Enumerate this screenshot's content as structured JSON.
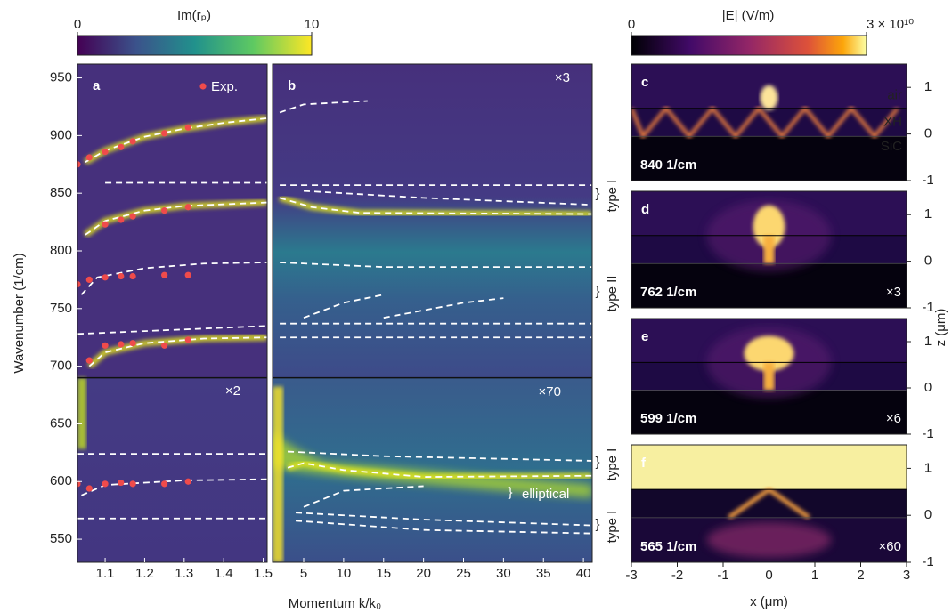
{
  "colorbars": [
    {
      "label": "Im(rₚ)",
      "lim": [
        0,
        10
      ],
      "ticks": [
        0,
        10
      ]
    },
    {
      "label": "|E| (V/m)",
      "lim": [
        0,
        30000000000
      ],
      "ticks": [
        0,
        {
          "value": 30000000000,
          "label": "3 × 10¹⁰"
        }
      ]
    }
  ],
  "chart_data": [
    {
      "type": "line",
      "label": "a",
      "xlabel": "Momentum k/k₀",
      "ylabel": "Wavenumber (1/cm)",
      "xlim": [
        1.03,
        1.51
      ],
      "xticks": [
        1.1,
        1.2,
        1.3,
        1.4,
        1.5
      ],
      "ylim": [
        530,
        962
      ],
      "yticks": [
        550,
        600,
        650,
        700,
        750,
        800,
        850,
        900,
        950
      ],
      "annotations": [
        "×2"
      ],
      "series": [
        {
          "color": "#ffffff",
          "style": "dashed",
          "glow": true,
          "x": [
            1.05,
            1.1,
            1.2,
            1.3,
            1.4,
            1.51
          ],
          "values": [
            877,
            887,
            899,
            906,
            911,
            915
          ]
        },
        {
          "color": "#ffffff",
          "style": "dashed",
          "x": [
            1.1,
            1.51
          ],
          "values": [
            859,
            859
          ]
        },
        {
          "color": "#ffffff",
          "style": "dashed",
          "glow": true,
          "x": [
            1.05,
            1.1,
            1.2,
            1.3,
            1.51
          ],
          "values": [
            814,
            826,
            835,
            839,
            842
          ]
        },
        {
          "color": "#ffffff",
          "style": "dashed",
          "x": [
            1.04,
            1.08,
            1.2,
            1.35,
            1.51
          ],
          "values": [
            762,
            777,
            785,
            789,
            790
          ]
        },
        {
          "color": "#ffffff",
          "style": "dashed",
          "x": [
            1.03,
            1.51
          ],
          "values": [
            728,
            735
          ]
        },
        {
          "color": "#ffffff",
          "style": "dashed",
          "glow": true,
          "x": [
            1.06,
            1.1,
            1.2,
            1.35,
            1.51
          ],
          "values": [
            700,
            712,
            720,
            724,
            725
          ]
        },
        {
          "color": "#ffffff",
          "style": "dashed",
          "x": [
            1.03,
            1.51
          ],
          "values": [
            624,
            624
          ]
        },
        {
          "color": "#ffffff",
          "style": "dashed",
          "x": [
            1.04,
            1.1,
            1.3,
            1.51
          ],
          "values": [
            588,
            597,
            601,
            602
          ]
        },
        {
          "color": "#ffffff",
          "style": "dashed",
          "x": [
            1.03,
            1.51
          ],
          "values": [
            568,
            568
          ]
        },
        {
          "name": "Exp.",
          "color": "#ef4b4b",
          "marker": "dot",
          "x": [
            1.03,
            1.06,
            1.1,
            1.14,
            1.17,
            1.25,
            1.31,
            1.1,
            1.14,
            1.17,
            1.25,
            1.31,
            1.03,
            1.06,
            1.1,
            1.14,
            1.17,
            1.25,
            1.31,
            1.06,
            1.1,
            1.14,
            1.17,
            1.25,
            1.31,
            1.03,
            1.06,
            1.1,
            1.14,
            1.17,
            1.25,
            1.31
          ],
          "values": [
            875,
            881,
            886,
            890,
            895,
            902,
            907,
            823,
            827,
            830,
            835,
            838,
            771,
            775,
            777,
            778,
            778,
            779,
            779,
            705,
            718,
            719,
            720,
            718,
            723,
            598,
            594,
            598,
            599,
            598,
            598,
            600
          ]
        }
      ]
    },
    {
      "type": "line",
      "label": "b",
      "xlim": [
        1.1,
        41.1
      ],
      "xticks": [
        5,
        10,
        15,
        20,
        25,
        30,
        35,
        40
      ],
      "ylim": [
        530,
        962
      ],
      "annotations": [
        "×3",
        "×70"
      ],
      "brackets": [
        "type I",
        "type II",
        "type I",
        "elliptical",
        "type I"
      ],
      "series": [
        {
          "color": "#ffffff",
          "style": "dashed",
          "x": [
            2,
            5,
            13
          ],
          "values": [
            920,
            927,
            930
          ]
        },
        {
          "color": "#ffffff",
          "style": "dashed",
          "x": [
            2,
            41
          ],
          "values": [
            857,
            857
          ]
        },
        {
          "color": "#ffffff",
          "style": "dashed",
          "x": [
            5,
            20,
            41
          ],
          "values": [
            852,
            846,
            840
          ]
        },
        {
          "color": "#ffffff",
          "style": "dashed",
          "glow": true,
          "x": [
            2,
            6,
            12,
            41
          ],
          "values": [
            846,
            838,
            833,
            832
          ]
        },
        {
          "color": "#ffffff",
          "style": "dashed",
          "x": [
            2,
            15,
            41
          ],
          "values": [
            790,
            786,
            786
          ]
        },
        {
          "color": "#ffffff",
          "style": "dashed",
          "x": [
            5,
            10,
            15
          ],
          "values": [
            742,
            755,
            762
          ]
        },
        {
          "color": "#ffffff",
          "style": "dashed",
          "x": [
            15,
            25,
            30
          ],
          "values": [
            742,
            755,
            759
          ]
        },
        {
          "color": "#ffffff",
          "style": "dashed",
          "x": [
            2,
            41
          ],
          "values": [
            737,
            737
          ]
        },
        {
          "color": "#ffffff",
          "style": "dashed",
          "x": [
            2,
            41
          ],
          "values": [
            725,
            725
          ]
        },
        {
          "color": "#ffffff",
          "style": "dashed",
          "x": [
            3,
            15,
            41
          ],
          "values": [
            626,
            622,
            618
          ]
        },
        {
          "color": "#ffffff",
          "style": "dashed",
          "glow": true,
          "x": [
            3,
            5,
            10,
            20,
            41
          ],
          "values": [
            612,
            616,
            610,
            604,
            605
          ]
        },
        {
          "color": "#ffffff",
          "style": "dashed",
          "x": [
            5,
            10,
            20
          ],
          "values": [
            578,
            592,
            596
          ]
        },
        {
          "color": "#ffffff",
          "style": "dashed",
          "x": [
            4,
            20,
            41
          ],
          "values": [
            573,
            567,
            562
          ]
        },
        {
          "color": "#ffffff",
          "style": "dashed",
          "x": [
            4,
            20,
            41
          ],
          "values": [
            566,
            558,
            555
          ]
        }
      ]
    },
    {
      "type": "field",
      "label": "c",
      "frequency": "840 1/cm",
      "annotations": [
        "air",
        "XH",
        "SiC"
      ],
      "xlim": [
        -3,
        3
      ],
      "ylim": [
        -1,
        1.5
      ],
      "yticks": [
        -1,
        0,
        1
      ]
    },
    {
      "type": "field",
      "label": "d",
      "frequency": "762 1/cm",
      "annotations": [
        "×3"
      ],
      "xlim": [
        -3,
        3
      ],
      "ylim": [
        -1,
        1.5
      ],
      "yticks": [
        -1,
        0,
        1
      ]
    },
    {
      "type": "field",
      "label": "e",
      "frequency": "599 1/cm",
      "annotations": [
        "×6"
      ],
      "xlim": [
        -3,
        3
      ],
      "ylim": [
        -1,
        1.5
      ],
      "yticks": [
        -1,
        0,
        1
      ],
      "ylabel": "z (μm)"
    },
    {
      "type": "field",
      "label": "f",
      "frequency": "565 1/cm",
      "annotations": [
        "×60"
      ],
      "xlim": [
        -3,
        3
      ],
      "ylim": [
        -1,
        1.5
      ],
      "yticks": [
        -1,
        0,
        1
      ],
      "xticks": [
        -3,
        -2,
        -1,
        0,
        1,
        2,
        3
      ],
      "xlabel": "x (μm)"
    }
  ]
}
